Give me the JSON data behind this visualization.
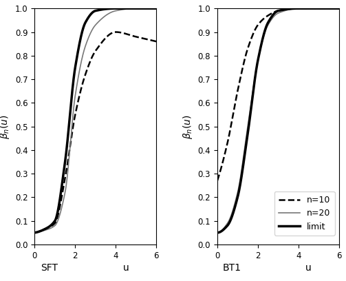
{
  "xlim": [
    0,
    6
  ],
  "ylim": [
    0,
    1
  ],
  "yticks": [
    0,
    0.1,
    0.2,
    0.3,
    0.4,
    0.5,
    0.6,
    0.7,
    0.8,
    0.9,
    1.0
  ],
  "xticks": [
    0,
    2,
    4,
    6
  ],
  "ylabel": "beta_n(u)",
  "xlabel": "u",
  "left_label": "SFT",
  "right_label": "BT1",
  "legend_entries": [
    "n=10",
    "n=20",
    "limit"
  ],
  "alpha_level": 0.05,
  "n10": 10,
  "n20": 20,
  "figsize": [
    5.03,
    4.08
  ],
  "dpi": 100
}
